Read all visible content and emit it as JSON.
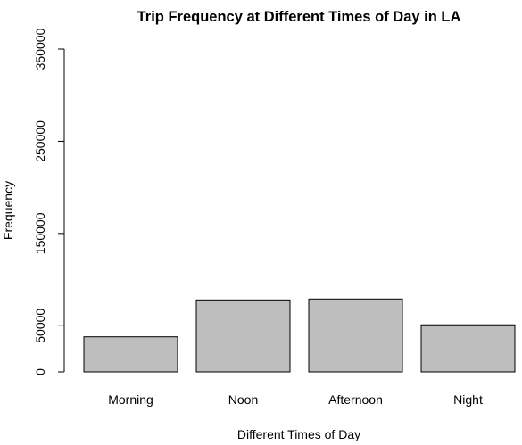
{
  "chart_data": {
    "type": "bar",
    "title": "Trip Frequency at Different Times of Day in LA",
    "xlabel": "Different Times of Day",
    "ylabel": "Frequency",
    "categories": [
      "Morning",
      "Noon",
      "Afternoon",
      "Night"
    ],
    "values": [
      38000,
      78000,
      79000,
      51000
    ],
    "ylim": [
      0,
      350000
    ],
    "yticks": [
      0,
      50000,
      150000,
      250000,
      350000
    ],
    "ytick_labels": [
      "0",
      "50000",
      "150000",
      "250000",
      "350000"
    ],
    "grid": false,
    "colors": {
      "bar_fill": "#bebebe",
      "bar_stroke": "#000000",
      "axis": "#000000",
      "text": "#000000"
    }
  }
}
